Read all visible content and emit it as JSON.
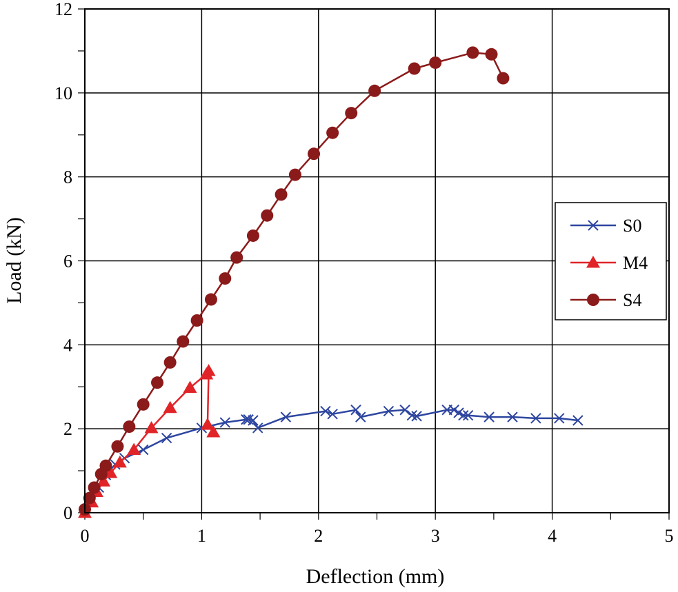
{
  "chart_data": {
    "type": "line",
    "title": "",
    "xlabel": "Deflection (mm)",
    "ylabel": "Load (kN)",
    "xlim": [
      0,
      5
    ],
    "ylim": [
      0,
      12
    ],
    "xticks": [
      0,
      1,
      2,
      3,
      4,
      5
    ],
    "yticks": [
      0,
      2,
      4,
      6,
      8,
      10,
      12
    ],
    "x_tick_labels": [
      "0",
      "1",
      "2",
      "3",
      "4",
      "5"
    ],
    "y_tick_labels": [
      "0",
      "2",
      "4",
      "6",
      "8",
      "10",
      "12"
    ],
    "grid": true,
    "legend_position": "right",
    "series": [
      {
        "name": "S0",
        "color": "#2e46a0",
        "marker": "x",
        "points": [
          [
            0,
            0
          ],
          [
            0.06,
            0.3
          ],
          [
            0.12,
            0.6
          ],
          [
            0.18,
            0.9
          ],
          [
            0.26,
            1.15
          ],
          [
            0.34,
            1.3
          ],
          [
            0.5,
            1.5
          ],
          [
            0.7,
            1.78
          ],
          [
            1.0,
            2.02
          ],
          [
            1.2,
            2.15
          ],
          [
            1.38,
            2.22
          ],
          [
            1.4,
            2.22
          ],
          [
            1.44,
            2.2
          ],
          [
            1.48,
            2.02
          ],
          [
            1.72,
            2.28
          ],
          [
            2.06,
            2.42
          ],
          [
            2.12,
            2.35
          ],
          [
            2.32,
            2.45
          ],
          [
            2.36,
            2.28
          ],
          [
            2.6,
            2.42
          ],
          [
            2.74,
            2.45
          ],
          [
            2.8,
            2.32
          ],
          [
            2.84,
            2.3
          ],
          [
            3.1,
            2.45
          ],
          [
            3.16,
            2.45
          ],
          [
            3.2,
            2.38
          ],
          [
            3.24,
            2.32
          ],
          [
            3.28,
            2.32
          ],
          [
            3.46,
            2.28
          ],
          [
            3.66,
            2.28
          ],
          [
            3.86,
            2.25
          ],
          [
            4.06,
            2.25
          ],
          [
            4.22,
            2.2
          ]
        ]
      },
      {
        "name": "M4",
        "color": "#e02428",
        "marker": "triangle",
        "points": [
          [
            0,
            0
          ],
          [
            0.06,
            0.25
          ],
          [
            0.1,
            0.5
          ],
          [
            0.16,
            0.75
          ],
          [
            0.22,
            0.95
          ],
          [
            0.3,
            1.2
          ],
          [
            0.42,
            1.5
          ],
          [
            0.57,
            2.02
          ],
          [
            0.73,
            2.5
          ],
          [
            0.9,
            2.98
          ],
          [
            1.04,
            3.3
          ],
          [
            1.06,
            3.38
          ],
          [
            1.05,
            2.1
          ],
          [
            1.1,
            1.92
          ]
        ]
      },
      {
        "name": "S4",
        "color": "#8b1a1a",
        "marker": "circle",
        "points": [
          [
            0,
            0.08
          ],
          [
            0.04,
            0.35
          ],
          [
            0.08,
            0.6
          ],
          [
            0.14,
            0.92
          ],
          [
            0.18,
            1.12
          ],
          [
            0.28,
            1.58
          ],
          [
            0.38,
            2.05
          ],
          [
            0.5,
            2.58
          ],
          [
            0.62,
            3.1
          ],
          [
            0.73,
            3.58
          ],
          [
            0.84,
            4.08
          ],
          [
            0.96,
            4.58
          ],
          [
            1.08,
            5.08
          ],
          [
            1.2,
            5.58
          ],
          [
            1.3,
            6.08
          ],
          [
            1.44,
            6.6
          ],
          [
            1.56,
            7.08
          ],
          [
            1.68,
            7.58
          ],
          [
            1.8,
            8.05
          ],
          [
            1.96,
            8.55
          ],
          [
            2.12,
            9.05
          ],
          [
            2.28,
            9.52
          ],
          [
            2.48,
            10.05
          ],
          [
            2.82,
            10.58
          ],
          [
            3.0,
            10.72
          ],
          [
            3.32,
            10.96
          ],
          [
            3.48,
            10.92
          ],
          [
            3.58,
            10.35
          ]
        ]
      }
    ]
  }
}
